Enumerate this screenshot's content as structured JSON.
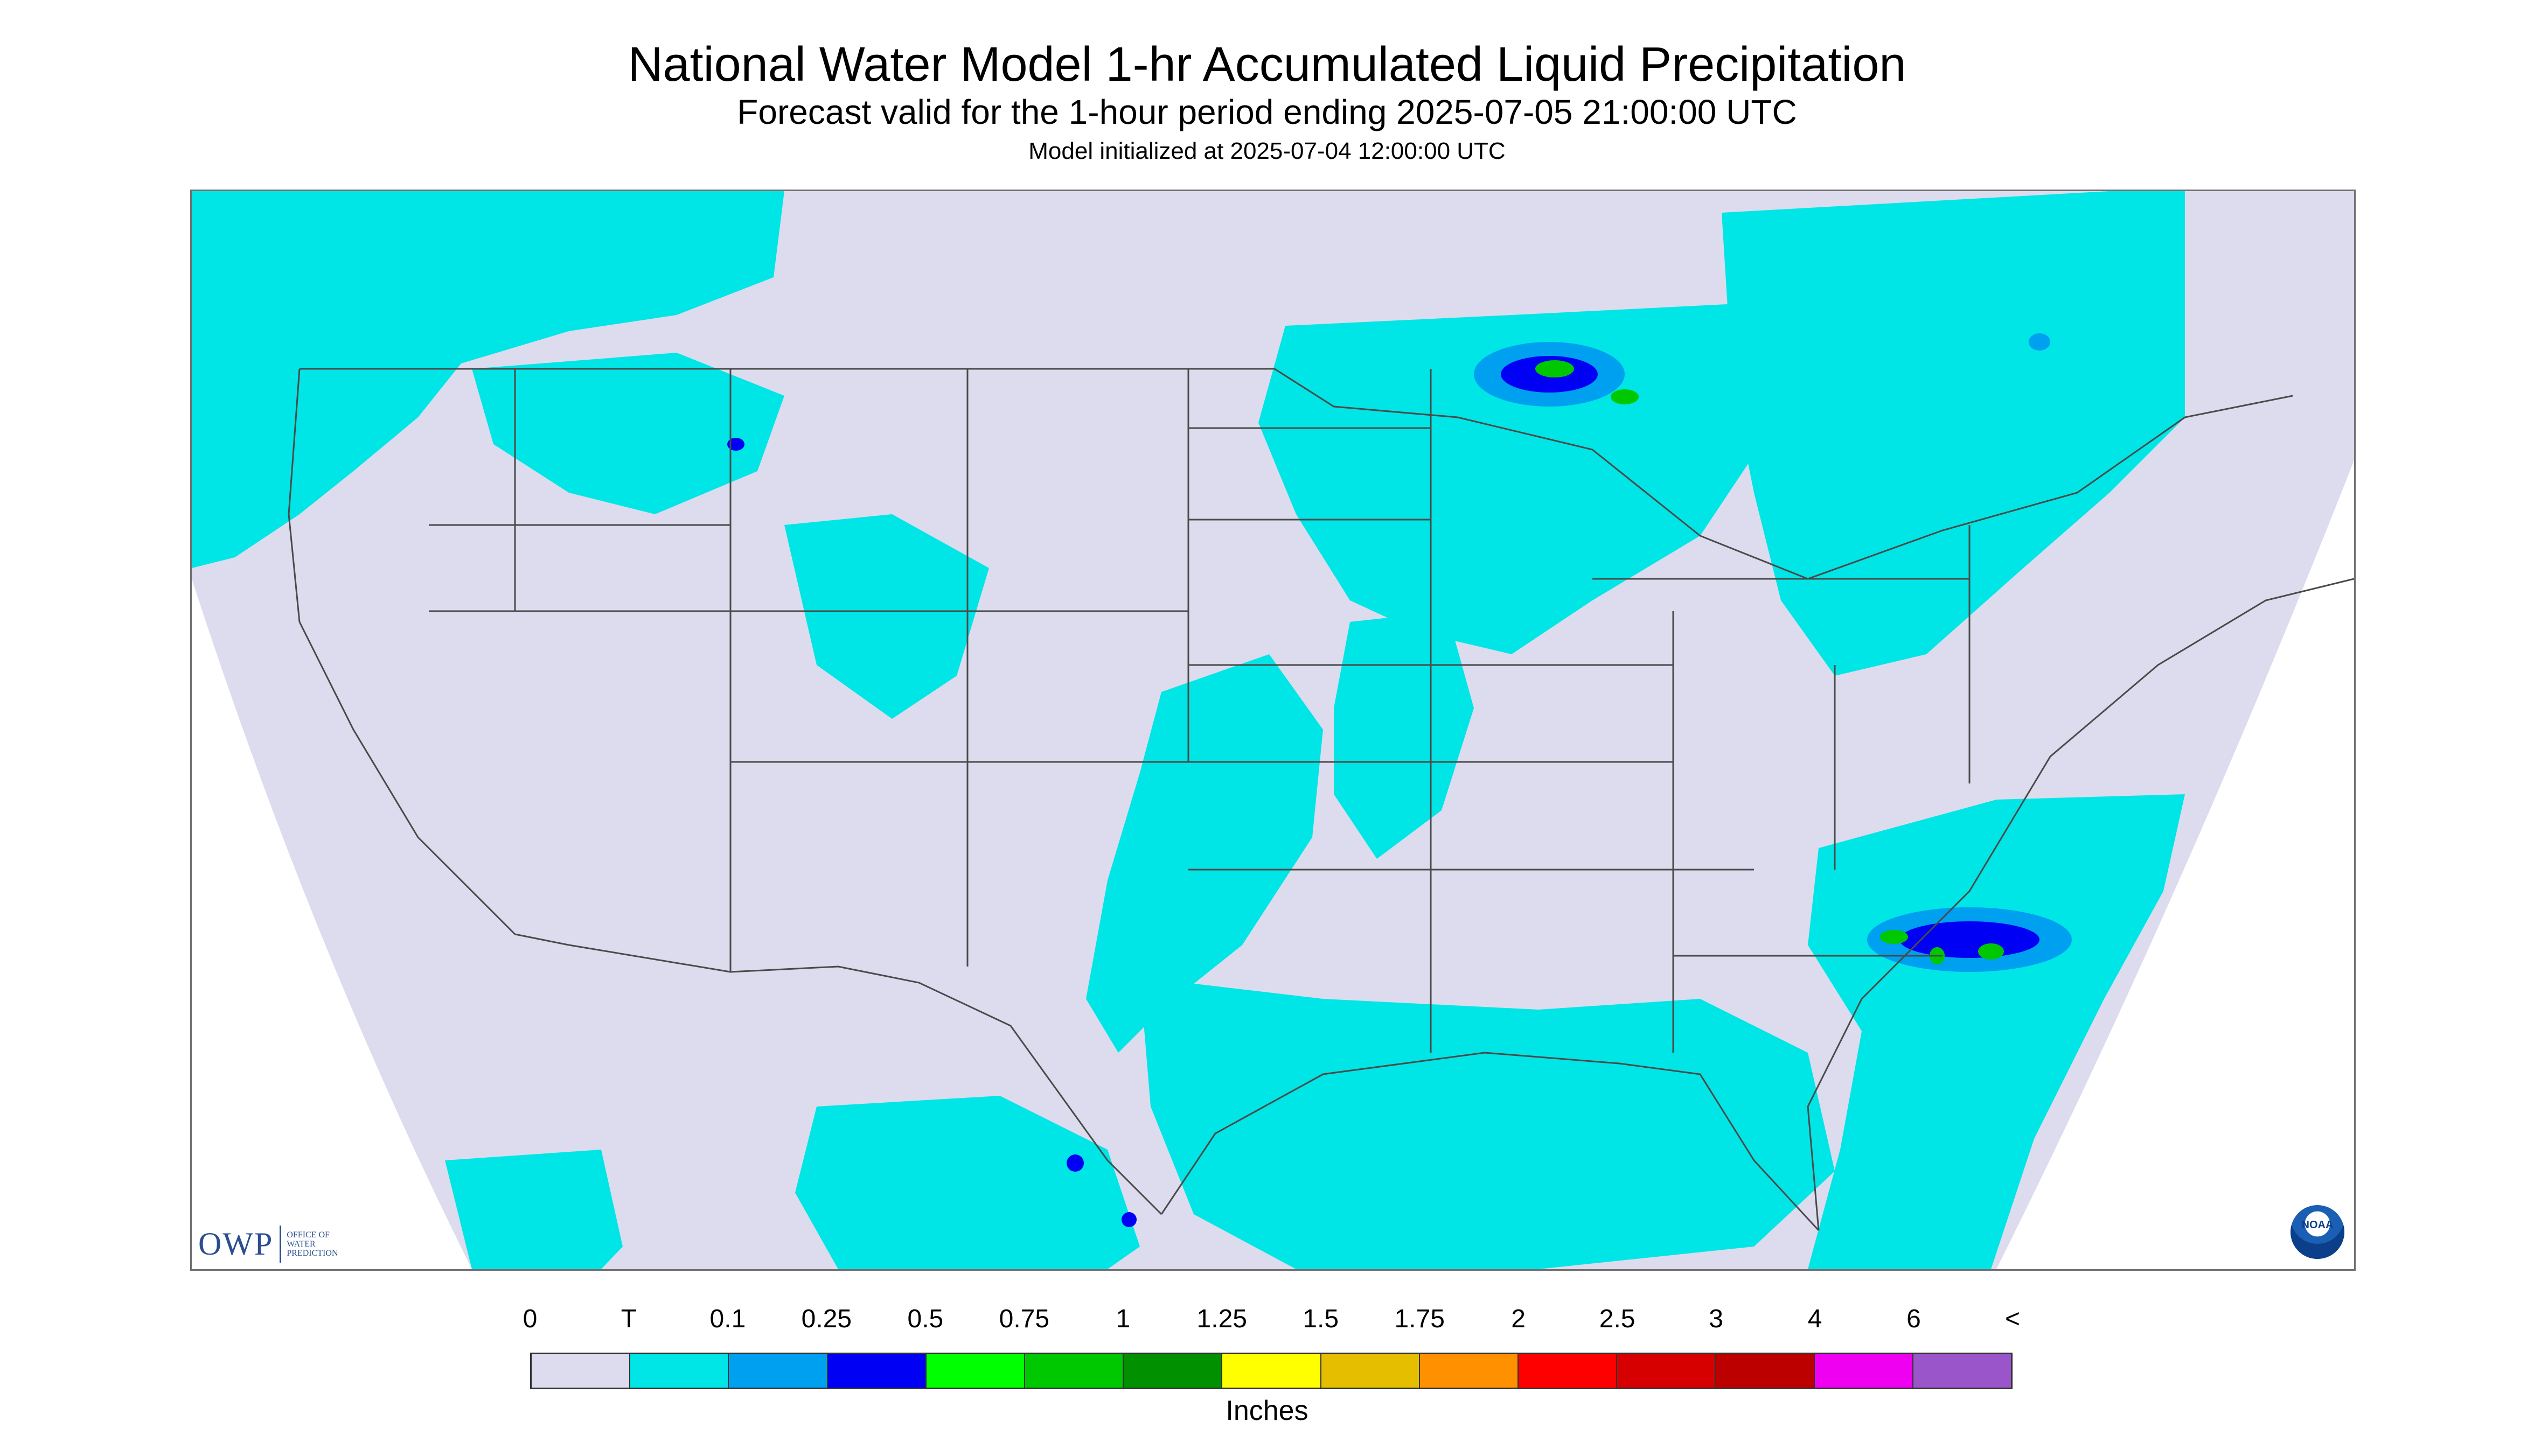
{
  "header": {
    "title": "National Water Model 1-hr Accumulated Liquid Precipitation",
    "subtitle": "Forecast valid for the 1-hour period ending 2025-07-05 21:00:00 UTC",
    "init_line": "Model initialized at 2025-07-04 12:00:00 UTC"
  },
  "map": {
    "background_color": "#dcdcee",
    "land_border_color": "#4a4a4a",
    "precip_areas": [
      {
        "region": "pacific-northwest-and-western-canada",
        "category": "T"
      },
      {
        "region": "northern-rockies-montana",
        "category": "T"
      },
      {
        "region": "upper-midwest-and-great-lakes",
        "category": "T"
      },
      {
        "region": "lake-superior-shore",
        "category": "0.75"
      },
      {
        "region": "eastern-canada-quebec",
        "category": "T"
      },
      {
        "region": "central-plains-to-texas",
        "category": "T"
      },
      {
        "region": "gulf-coast-and-florida",
        "category": "T"
      },
      {
        "region": "southeast-atlantic-offshore",
        "category": "0.75"
      },
      {
        "region": "northern-mexico",
        "category": "0.5"
      },
      {
        "region": "baja-pacific-offshore",
        "category": "T"
      }
    ]
  },
  "logos": {
    "owp_mark": "OWP",
    "owp_words": [
      "Office of",
      "Water",
      "Prediction"
    ],
    "noaa_text": "NOAA"
  },
  "legend": {
    "labels": [
      "0",
      "T",
      "0.1",
      "0.25",
      "0.5",
      "0.75",
      "1",
      "1.25",
      "1.5",
      "1.75",
      "2",
      "2.5",
      "3",
      "4",
      "6",
      "<"
    ],
    "colors": [
      "#dcdcee",
      "#00e5e5",
      "#00a0f0",
      "#0000f5",
      "#00ff00",
      "#00c800",
      "#009000",
      "#ffff00",
      "#e6be00",
      "#ff9000",
      "#ff0000",
      "#d70000",
      "#bc0000",
      "#f000f0",
      "#9955c9"
    ],
    "units": "Inches"
  }
}
